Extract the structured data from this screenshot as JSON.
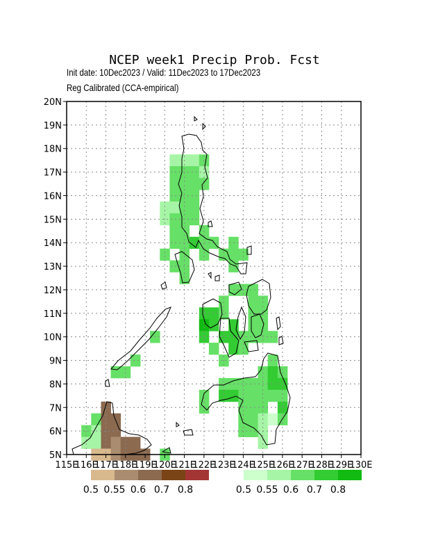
{
  "title": "NCEP week1 Precip Prob. Fcst",
  "subtitle": "Init date: 10Dec2023 / Valid: 11Dec2023 to 17Dec2023",
  "calibration": "Reg Calibrated (CCA-empirical)",
  "map": {
    "lon_range": [
      115,
      130
    ],
    "lat_range": [
      5,
      20
    ],
    "grid_step_deg": 1,
    "grid_style": "dotted",
    "x_ticks": [
      "115E",
      "116E",
      "117E",
      "118E",
      "119E",
      "120E",
      "121E",
      "122E",
      "123E",
      "124E",
      "125E",
      "126E",
      "127E",
      "128E",
      "129E",
      "130E"
    ],
    "y_ticks": [
      "5N",
      "6N",
      "7N",
      "8N",
      "9N",
      "10N",
      "11N",
      "12N",
      "13N",
      "14N",
      "15N",
      "16N",
      "17N",
      "18N",
      "19N",
      "20N"
    ],
    "cell_size_deg": 0.5
  },
  "legends": {
    "below": {
      "name": "below-normal",
      "colors": [
        "#d8b98e",
        "#aa8c70",
        "#8b6a50",
        "#7a4416",
        "#a33535"
      ],
      "labels": [
        "0.5",
        "0.55",
        "0.6",
        "0.7",
        "0.8"
      ]
    },
    "above": {
      "name": "above-normal",
      "colors": [
        "#ccffcc",
        "#a6f5a6",
        "#66e066",
        "#33cc33",
        "#11bb11"
      ],
      "labels": [
        "0.5",
        "0.55",
        "0.6",
        "0.7",
        "0.8"
      ]
    }
  },
  "probability_cells": [
    {
      "lon": 121,
      "lat": 17.5,
      "cat": "above",
      "level": 0.55
    },
    {
      "lon": 121.5,
      "lat": 17.5,
      "cat": "above",
      "level": 0.55
    },
    {
      "lon": 120.5,
      "lat": 17.5,
      "cat": "above",
      "level": 0.55
    },
    {
      "lon": 122,
      "lat": 17.5,
      "cat": "above",
      "level": 0.6
    },
    {
      "lon": 120.5,
      "lat": 17,
      "cat": "above",
      "level": 0.6
    },
    {
      "lon": 121,
      "lat": 17,
      "cat": "above",
      "level": 0.6
    },
    {
      "lon": 121.5,
      "lat": 17,
      "cat": "above",
      "level": 0.6
    },
    {
      "lon": 122,
      "lat": 17,
      "cat": "above",
      "level": 0.55
    },
    {
      "lon": 120.5,
      "lat": 16.5,
      "cat": "above",
      "level": 0.6
    },
    {
      "lon": 121,
      "lat": 16.5,
      "cat": "above",
      "level": 0.6
    },
    {
      "lon": 121.5,
      "lat": 16.5,
      "cat": "above",
      "level": 0.6
    },
    {
      "lon": 122,
      "lat": 16.5,
      "cat": "above",
      "level": 0.6
    },
    {
      "lon": 120.5,
      "lat": 16,
      "cat": "above",
      "level": 0.6
    },
    {
      "lon": 121,
      "lat": 16,
      "cat": "above",
      "level": 0.6
    },
    {
      "lon": 121.5,
      "lat": 16,
      "cat": "above",
      "level": 0.6
    },
    {
      "lon": 120,
      "lat": 15.5,
      "cat": "above",
      "level": 0.55
    },
    {
      "lon": 120.5,
      "lat": 15.5,
      "cat": "above",
      "level": 0.55
    },
    {
      "lon": 121,
      "lat": 15.5,
      "cat": "above",
      "level": 0.6
    },
    {
      "lon": 121.5,
      "lat": 15.5,
      "cat": "above",
      "level": 0.6
    },
    {
      "lon": 120,
      "lat": 15,
      "cat": "above",
      "level": 0.55
    },
    {
      "lon": 120.5,
      "lat": 15,
      "cat": "above",
      "level": 0.6
    },
    {
      "lon": 121,
      "lat": 15,
      "cat": "above",
      "level": 0.6
    },
    {
      "lon": 121.5,
      "lat": 15,
      "cat": "above",
      "level": 0.6
    },
    {
      "lon": 120.5,
      "lat": 14.5,
      "cat": "above",
      "level": 0.6
    },
    {
      "lon": 121,
      "lat": 14.5,
      "cat": "above",
      "level": 0.6
    },
    {
      "lon": 122,
      "lat": 14.5,
      "cat": "above",
      "level": 0.6
    },
    {
      "lon": 120.5,
      "lat": 14,
      "cat": "above",
      "level": 0.6
    },
    {
      "lon": 121,
      "lat": 14,
      "cat": "above",
      "level": 0.6
    },
    {
      "lon": 121.5,
      "lat": 14,
      "cat": "above",
      "level": 0.7
    },
    {
      "lon": 122,
      "lat": 14,
      "cat": "above",
      "level": 0.6
    },
    {
      "lon": 122.5,
      "lat": 14,
      "cat": "above",
      "level": 0.6
    },
    {
      "lon": 123.5,
      "lat": 14,
      "cat": "above",
      "level": 0.6
    },
    {
      "lon": 120,
      "lat": 13.5,
      "cat": "above",
      "level": 0.6
    },
    {
      "lon": 121,
      "lat": 13.5,
      "cat": "above",
      "level": 0.6
    },
    {
      "lon": 122,
      "lat": 13.5,
      "cat": "above",
      "level": 0.6
    },
    {
      "lon": 123,
      "lat": 13.5,
      "cat": "above",
      "level": 0.6
    },
    {
      "lon": 123.5,
      "lat": 13.5,
      "cat": "above",
      "level": 0.6
    },
    {
      "lon": 124,
      "lat": 13.5,
      "cat": "above",
      "level": 0.6
    },
    {
      "lon": 120.5,
      "lat": 13,
      "cat": "above",
      "level": 0.6
    },
    {
      "lon": 121,
      "lat": 13,
      "cat": "above",
      "level": 0.6
    },
    {
      "lon": 123.5,
      "lat": 13,
      "cat": "above",
      "level": 0.6
    },
    {
      "lon": 121,
      "lat": 12.5,
      "cat": "above",
      "level": 0.6
    },
    {
      "lon": 123.5,
      "lat": 12,
      "cat": "above",
      "level": 0.6
    },
    {
      "lon": 124,
      "lat": 12,
      "cat": "above",
      "level": 0.6
    },
    {
      "lon": 124.5,
      "lat": 12,
      "cat": "above",
      "level": 0.6
    },
    {
      "lon": 123,
      "lat": 11.5,
      "cat": "above",
      "level": 0.6
    },
    {
      "lon": 124.5,
      "lat": 11.5,
      "cat": "above",
      "level": 0.6
    },
    {
      "lon": 125,
      "lat": 11.5,
      "cat": "above",
      "level": 0.6
    },
    {
      "lon": 122,
      "lat": 11,
      "cat": "above",
      "level": 0.7
    },
    {
      "lon": 122.5,
      "lat": 11,
      "cat": "above",
      "level": 0.7
    },
    {
      "lon": 123,
      "lat": 11,
      "cat": "above",
      "level": 0.6
    },
    {
      "lon": 124.5,
      "lat": 11,
      "cat": "above",
      "level": 0.6
    },
    {
      "lon": 125,
      "lat": 11,
      "cat": "above",
      "level": 0.6
    },
    {
      "lon": 122,
      "lat": 10.5,
      "cat": "above",
      "level": 0.8
    },
    {
      "lon": 122.5,
      "lat": 10.5,
      "cat": "above",
      "level": 0.7
    },
    {
      "lon": 123.5,
      "lat": 10.5,
      "cat": "above",
      "level": 0.7
    },
    {
      "lon": 124.5,
      "lat": 10.5,
      "cat": "above",
      "level": 0.6
    },
    {
      "lon": 125,
      "lat": 10.5,
      "cat": "above",
      "level": 0.6
    },
    {
      "lon": 122,
      "lat": 10,
      "cat": "above",
      "level": 0.7
    },
    {
      "lon": 123,
      "lat": 10,
      "cat": "above",
      "level": 0.7
    },
    {
      "lon": 123.5,
      "lat": 10,
      "cat": "above",
      "level": 0.7
    },
    {
      "lon": 124,
      "lat": 10,
      "cat": "above",
      "level": 0.6
    },
    {
      "lon": 124.5,
      "lat": 10,
      "cat": "above",
      "level": 0.6
    },
    {
      "lon": 125,
      "lat": 10,
      "cat": "above",
      "level": 0.6
    },
    {
      "lon": 125.5,
      "lat": 10,
      "cat": "above",
      "level": 0.6
    },
    {
      "lon": 122.5,
      "lat": 9.5,
      "cat": "above",
      "level": 0.6
    },
    {
      "lon": 123.5,
      "lat": 9.5,
      "cat": "above",
      "level": 0.7
    },
    {
      "lon": 124,
      "lat": 9.5,
      "cat": "above",
      "level": 0.6
    },
    {
      "lon": 123,
      "lat": 9,
      "cat": "above",
      "level": 0.6
    },
    {
      "lon": 125.5,
      "lat": 9,
      "cat": "above",
      "level": 0.6
    },
    {
      "lon": 125,
      "lat": 8.5,
      "cat": "above",
      "level": 0.6
    },
    {
      "lon": 125.5,
      "lat": 8.5,
      "cat": "above",
      "level": 0.7
    },
    {
      "lon": 126,
      "lat": 8.5,
      "cat": "above",
      "level": 0.6
    },
    {
      "lon": 123,
      "lat": 8,
      "cat": "above",
      "level": 0.6
    },
    {
      "lon": 123.5,
      "lat": 8,
      "cat": "above",
      "level": 0.6
    },
    {
      "lon": 124,
      "lat": 8,
      "cat": "above",
      "level": 0.6
    },
    {
      "lon": 124.5,
      "lat": 8,
      "cat": "above",
      "level": 0.6
    },
    {
      "lon": 125,
      "lat": 8,
      "cat": "above",
      "level": 0.6
    },
    {
      "lon": 125.5,
      "lat": 8,
      "cat": "above",
      "level": 0.7
    },
    {
      "lon": 126,
      "lat": 8,
      "cat": "above",
      "level": 0.7
    },
    {
      "lon": 122,
      "lat": 7.5,
      "cat": "above",
      "level": 0.6
    },
    {
      "lon": 123,
      "lat": 7.5,
      "cat": "above",
      "level": 0.7
    },
    {
      "lon": 123.5,
      "lat": 7.5,
      "cat": "above",
      "level": 0.7
    },
    {
      "lon": 124,
      "lat": 7.5,
      "cat": "above",
      "level": 0.6
    },
    {
      "lon": 124.5,
      "lat": 7.5,
      "cat": "above",
      "level": 0.6
    },
    {
      "lon": 125,
      "lat": 7.5,
      "cat": "above",
      "level": 0.6
    },
    {
      "lon": 125.5,
      "lat": 7.5,
      "cat": "above",
      "level": 0.6
    },
    {
      "lon": 126,
      "lat": 7.5,
      "cat": "above",
      "level": 0.6
    },
    {
      "lon": 122,
      "lat": 7,
      "cat": "above",
      "level": 0.6
    },
    {
      "lon": 124,
      "lat": 7,
      "cat": "above",
      "level": 0.6
    },
    {
      "lon": 124.5,
      "lat": 7,
      "cat": "above",
      "level": 0.6
    },
    {
      "lon": 125,
      "lat": 7,
      "cat": "above",
      "level": 0.6
    },
    {
      "lon": 126,
      "lat": 7,
      "cat": "above",
      "level": 0.7
    },
    {
      "lon": 124,
      "lat": 6.5,
      "cat": "above",
      "level": 0.6
    },
    {
      "lon": 124.5,
      "lat": 6.5,
      "cat": "above",
      "level": 0.6
    },
    {
      "lon": 125,
      "lat": 6.5,
      "cat": "above",
      "level": 0.55
    },
    {
      "lon": 125.5,
      "lat": 6.5,
      "cat": "above",
      "level": 0.5
    },
    {
      "lon": 126,
      "lat": 6.5,
      "cat": "above",
      "level": 0.6
    },
    {
      "lon": 124,
      "lat": 6,
      "cat": "above",
      "level": 0.6
    },
    {
      "lon": 124.5,
      "lat": 6,
      "cat": "above",
      "level": 0.6
    },
    {
      "lon": 125,
      "lat": 6,
      "cat": "above",
      "level": 0.55
    },
    {
      "lon": 125,
      "lat": 5.5,
      "cat": "above",
      "level": 0.55
    },
    {
      "lon": 119.5,
      "lat": 10,
      "cat": "above",
      "level": 0.6
    },
    {
      "lon": 118.5,
      "lat": 9,
      "cat": "above",
      "level": 0.6
    },
    {
      "lon": 118,
      "lat": 8.5,
      "cat": "above",
      "level": 0.6
    },
    {
      "lon": 117.5,
      "lat": 8.5,
      "cat": "above",
      "level": 0.6
    },
    {
      "lon": 116.5,
      "lat": 6.5,
      "cat": "above",
      "level": 0.6
    },
    {
      "lon": 116,
      "lat": 6,
      "cat": "above",
      "level": 0.6
    },
    {
      "lon": 116.5,
      "lat": 6,
      "cat": "above",
      "level": 0.55
    },
    {
      "lon": 116,
      "lat": 5.5,
      "cat": "above",
      "level": 0.55
    },
    {
      "lon": 116.5,
      "lat": 5.5,
      "cat": "above",
      "level": 0.55
    },
    {
      "lon": 120,
      "lat": 5,
      "cat": "above",
      "level": 0.6
    },
    {
      "lon": 117,
      "lat": 7,
      "cat": "below",
      "level": 0.6
    },
    {
      "lon": 117,
      "lat": 6.5,
      "cat": "below",
      "level": 0.6
    },
    {
      "lon": 117.5,
      "lat": 6.5,
      "cat": "below",
      "level": 0.6
    },
    {
      "lon": 117,
      "lat": 6,
      "cat": "below",
      "level": 0.6
    },
    {
      "lon": 117.5,
      "lat": 6,
      "cat": "below",
      "level": 0.6
    },
    {
      "lon": 117,
      "lat": 5.5,
      "cat": "below",
      "level": 0.6
    },
    {
      "lon": 117.5,
      "lat": 5.5,
      "cat": "below",
      "level": 0.55
    },
    {
      "lon": 118,
      "lat": 5.5,
      "cat": "below",
      "level": 0.6
    },
    {
      "lon": 118.5,
      "lat": 5.5,
      "cat": "below",
      "level": 0.6
    },
    {
      "lon": 116.5,
      "lat": 5,
      "cat": "below",
      "level": 0.5
    },
    {
      "lon": 117,
      "lat": 5,
      "cat": "below",
      "level": 0.5
    },
    {
      "lon": 117.5,
      "lat": 5,
      "cat": "below",
      "level": 0.55
    },
    {
      "lon": 118,
      "lat": 5,
      "cat": "below",
      "level": 0.6
    },
    {
      "lon": 118.5,
      "lat": 5,
      "cat": "below",
      "level": 0.6
    },
    {
      "lon": 119,
      "lat": 5,
      "cat": "below",
      "level": 0.6
    }
  ]
}
